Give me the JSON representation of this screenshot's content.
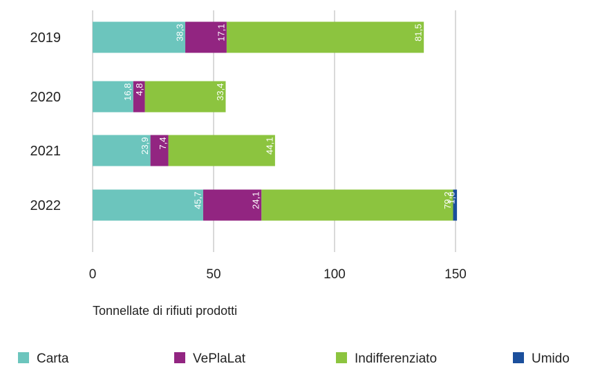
{
  "chart_data": {
    "type": "bar",
    "orientation": "horizontal",
    "stacked": true,
    "categories": [
      "2019",
      "2020",
      "2021",
      "2022"
    ],
    "series": [
      {
        "name": "Carta",
        "values": [
          38.3,
          16.8,
          23.9,
          45.7
        ],
        "color": "#6cc5bd",
        "labels": [
          "38,3",
          "16,8",
          "23,9",
          "45,7"
        ]
      },
      {
        "name": "VePlaLat",
        "values": [
          17.1,
          4.8,
          7.4,
          24.1
        ],
        "color": "#922581",
        "labels": [
          "17,1",
          "4,8",
          "7,4",
          "24,1"
        ]
      },
      {
        "name": "Indifferenziato",
        "values": [
          81.5,
          33.4,
          44.1,
          79.2
        ],
        "color": "#8cc43f",
        "labels": [
          "81,5",
          "33,4",
          "44,1",
          "79,2"
        ]
      },
      {
        "name": "Umido",
        "values": [
          0,
          0,
          0,
          1.6
        ],
        "color": "#1b4f9c",
        "labels": [
          "",
          "",
          "",
          "1,6"
        ]
      }
    ],
    "xlabel": "Tonnellate di rifiuti prodotti",
    "ylabel": "",
    "xlim": [
      0,
      175
    ],
    "xticks": [
      0,
      50,
      100,
      150
    ],
    "grid": true,
    "legend_position": "bottom"
  }
}
